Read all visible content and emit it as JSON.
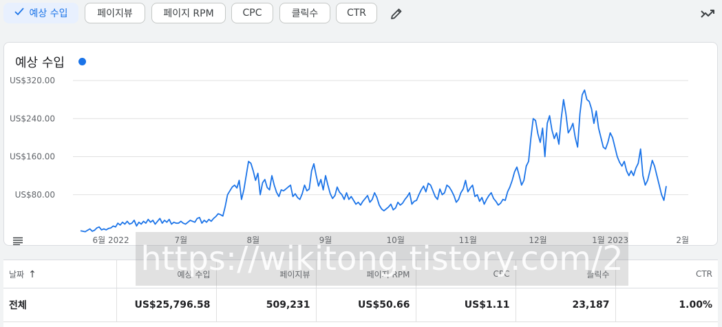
{
  "toolbar": {
    "chips": [
      {
        "label": "예상 수입",
        "selected": true
      },
      {
        "label": "페이지뷰",
        "selected": false
      },
      {
        "label": "페이지 RPM",
        "selected": false
      },
      {
        "label": "CPC",
        "selected": false
      },
      {
        "label": "클릭수",
        "selected": false
      },
      {
        "label": "CTR",
        "selected": false
      }
    ],
    "edit_icon": "pencil-icon",
    "chart_type_icon": "trending-icon"
  },
  "chart_card": {
    "title": "예상 수입",
    "series_color": "#1a73e8"
  },
  "chart_data": {
    "type": "line",
    "title": "예상 수입",
    "xlabel": "",
    "ylabel": "",
    "ylim": [
      0,
      320
    ],
    "y_ticks": [
      "US$80.00",
      "US$160.00",
      "US$240.00",
      "US$320.00"
    ],
    "y_tick_values": [
      80,
      160,
      240,
      320
    ],
    "x_ticks": [
      "6월 2022",
      "7월",
      "8월",
      "9월",
      "10월",
      "11월",
      "12월",
      "1월 2023",
      "2월"
    ],
    "x_tick_days": [
      13,
      43,
      74,
      105,
      135,
      166,
      196,
      227,
      258
    ],
    "series": [
      {
        "color": "#1a73e8",
        "values": [
          4,
          3,
          2,
          5,
          8,
          3,
          5,
          10,
          12,
          6,
          8,
          6,
          9,
          10,
          14,
          12,
          20,
          16,
          22,
          18,
          24,
          18,
          20,
          26,
          14,
          22,
          18,
          24,
          20,
          28,
          22,
          26,
          18,
          24,
          30,
          20,
          26,
          22,
          28,
          18,
          22,
          20,
          20,
          24,
          20,
          18,
          22,
          26,
          24,
          22,
          30,
          32,
          20,
          26,
          22,
          28,
          24,
          30,
          34,
          40,
          38,
          35,
          55,
          80,
          88,
          96,
          100,
          94,
          110,
          70,
          90,
          120,
          150,
          146,
          130,
          110,
          125,
          80,
          105,
          112,
          95,
          90,
          120,
          100,
          85,
          76,
          90,
          88,
          92,
          96,
          100,
          76,
          82,
          74,
          70,
          82,
          100,
          88,
          92,
          130,
          145,
          120,
          98,
          112,
          90,
          120,
          100,
          82,
          72,
          78,
          96,
          85,
          80,
          70,
          84,
          70,
          76,
          68,
          60,
          64,
          58,
          66,
          72,
          78,
          64,
          70,
          84,
          74,
          58,
          50,
          46,
          50,
          54,
          60,
          48,
          52,
          64,
          58,
          62,
          70,
          76,
          84,
          60,
          66,
          68,
          80,
          90,
          98,
          86,
          104,
          100,
          88,
          76,
          70,
          92,
          80,
          84,
          100,
          96,
          88,
          78,
          64,
          70,
          84,
          92,
          110,
          86,
          94,
          100,
          76,
          80,
          66,
          74,
          60,
          70,
          78,
          84,
          72,
          66,
          58,
          62,
          70,
          68,
          86,
          96,
          110,
          128,
          138,
          120,
          100,
          110,
          140,
          150,
          200,
          240,
          236,
          208,
          190,
          220,
          160,
          230,
          246,
          216,
          198,
          210,
          186,
          240,
          280,
          250,
          210,
          218,
          230,
          200,
          180,
          250,
          290,
          300,
          280,
          276,
          260,
          230,
          256,
          220,
          200,
          180,
          176,
          190,
          210,
          200,
          180,
          160,
          148,
          140,
          150,
          130,
          120,
          130,
          120,
          136,
          146,
          176,
          120,
          100,
          110,
          130,
          152,
          140,
          120,
          100,
          80,
          68,
          98
        ]
      }
    ]
  },
  "table": {
    "sort_icon": "arrow-up-icon",
    "headers": [
      "날짜",
      "예상 수입",
      "페이지뷰",
      "페이지 RPM",
      "CPC",
      "클릭수",
      "CTR"
    ],
    "rows": [
      [
        "전체",
        "US$25,796.58",
        "509,231",
        "US$50.66",
        "US$1.11",
        "23,187",
        "1.00%"
      ]
    ]
  },
  "watermark": "https://wikitong.tistory.com/2"
}
